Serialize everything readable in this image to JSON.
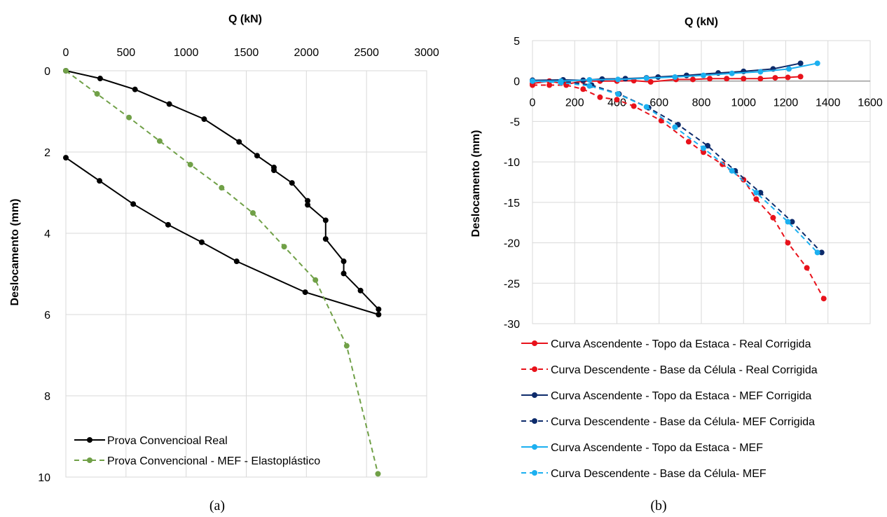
{
  "chart_data": [
    {
      "type": "line",
      "caption": "(a)",
      "xlabel": "Q (kN)",
      "ylabel": "Deslocamento (mm)",
      "xlim": [
        0,
        3000
      ],
      "ylim": [
        0,
        10
      ],
      "y_inverted": true,
      "x_axis_position": "top",
      "xticks": [
        "0",
        "500",
        "1000",
        "1500",
        "2000",
        "2500",
        "3000"
      ],
      "yticks": [
        "0",
        "2",
        "4",
        "6",
        "8",
        "10"
      ],
      "grid": true,
      "legend_position": "bottom-left",
      "series": [
        {
          "name": "Prova Convencioal Real",
          "color": "#000000",
          "dashed": false,
          "points": [
            [
              0,
              0
            ],
            [
              285,
              0.19
            ],
            [
              575,
              0.46
            ],
            [
              860,
              0.82
            ],
            [
              1150,
              1.19
            ],
            [
              1440,
              1.75
            ],
            [
              1590,
              2.09
            ],
            [
              1730,
              2.38
            ],
            [
              1730,
              2.45
            ],
            [
              1880,
              2.76
            ],
            [
              2010,
              3.2
            ],
            [
              2010,
              3.3
            ],
            [
              2160,
              3.68
            ],
            [
              2160,
              4.14
            ],
            [
              2310,
              4.69
            ],
            [
              2310,
              4.99
            ],
            [
              2450,
              5.41
            ],
            [
              2600,
              5.87
            ],
            [
              2600,
              6.0
            ],
            [
              1990,
              5.45
            ],
            [
              1420,
              4.69
            ],
            [
              1130,
              4.22
            ],
            [
              850,
              3.79
            ],
            [
              560,
              3.28
            ],
            [
              280,
              2.71
            ],
            [
              0,
              2.14
            ]
          ]
        },
        {
          "name": "Prova Convencional - MEF - Elastoplástico",
          "color": "#70A047",
          "dashed": true,
          "points": [
            [
              0,
              0
            ],
            [
              260,
              0.57
            ],
            [
              525,
              1.15
            ],
            [
              780,
              1.73
            ],
            [
              1035,
              2.31
            ],
            [
              1295,
              2.88
            ],
            [
              1555,
              3.5
            ],
            [
              1815,
              4.33
            ],
            [
              2075,
              5.15
            ],
            [
              2335,
              6.77
            ],
            [
              2595,
              9.92
            ]
          ]
        }
      ]
    },
    {
      "type": "line",
      "caption": "(b)",
      "xlabel": "Q (kN)",
      "ylabel": "Deslocamento (mm)",
      "xlim": [
        0,
        1600
      ],
      "ylim": [
        -30,
        5
      ],
      "xticks": [
        "0",
        "200",
        "400",
        "600",
        "800",
        "1000",
        "1200",
        "1400",
        "1600"
      ],
      "yticks": [
        "5",
        "0",
        "-5",
        "-10",
        "-15",
        "-20",
        "-25",
        "-30"
      ],
      "grid": true,
      "legend_position": "bottom",
      "series": [
        {
          "name": "Curva Ascendente - Topo da Estaca - Real Corrigida",
          "color": "#E8121B",
          "dashed": false,
          "points": [
            [
              0,
              -0.3
            ],
            [
              80,
              0.0
            ],
            [
              160,
              -0.4
            ],
            [
              240,
              0.0
            ],
            [
              320,
              0.0
            ],
            [
              400,
              0.0
            ],
            [
              480,
              0.05
            ],
            [
              560,
              -0.1
            ],
            [
              680,
              0.2
            ],
            [
              760,
              0.2
            ],
            [
              840,
              0.3
            ],
            [
              920,
              0.3
            ],
            [
              1000,
              0.3
            ],
            [
              1080,
              0.3
            ],
            [
              1150,
              0.4
            ],
            [
              1210,
              0.45
            ],
            [
              1270,
              0.55
            ]
          ]
        },
        {
          "name": "Curva Descendente - Base da Célula - Real Corrigida",
          "color": "#E8121B",
          "dashed": true,
          "points": [
            [
              0,
              -0.5
            ],
            [
              80,
              -0.5
            ],
            [
              160,
              -0.5
            ],
            [
              240,
              -1.0
            ],
            [
              320,
              -2.0
            ],
            [
              400,
              -2.3
            ],
            [
              480,
              -3.1
            ],
            [
              610,
              -4.9
            ],
            [
              740,
              -7.5
            ],
            [
              810,
              -8.8
            ],
            [
              900,
              -10.3
            ],
            [
              1000,
              -12.2
            ],
            [
              1060,
              -14.6
            ],
            [
              1140,
              -16.9
            ],
            [
              1210,
              -20.0
            ],
            [
              1300,
              -23.1
            ],
            [
              1380,
              -26.9
            ]
          ]
        },
        {
          "name": "Curva  Ascendente - Topo da Estaca - MEF Corrigida",
          "color": "#0D2B6B",
          "dashed": false,
          "points": [
            [
              0,
              0.1
            ],
            [
              145,
              0.15
            ],
            [
              240,
              0.1
            ],
            [
              330,
              0.25
            ],
            [
              440,
              0.3
            ],
            [
              540,
              0.4
            ],
            [
              595,
              0.5
            ],
            [
              730,
              0.7
            ],
            [
              880,
              1.0
            ],
            [
              1000,
              1.2
            ],
            [
              1140,
              1.5
            ],
            [
              1270,
              2.2
            ]
          ]
        },
        {
          "name": "Curva  Descendente - Base da Célula- MEF Corrigida",
          "color": "#0D2B6B",
          "dashed": true,
          "points": [
            [
              0,
              0.0
            ],
            [
              140,
              0.0
            ],
            [
              280,
              -0.5
            ],
            [
              410,
              -1.6
            ],
            [
              550,
              -3.3
            ],
            [
              690,
              -5.4
            ],
            [
              830,
              -8.0
            ],
            [
              960,
              -11.1
            ],
            [
              1080,
              -13.8
            ],
            [
              1230,
              -17.4
            ],
            [
              1370,
              -21.2
            ]
          ]
        },
        {
          "name": "Curva  Ascendente - Topo da Estaca - MEF",
          "color": "#1CB0F0",
          "dashed": false,
          "points": [
            [
              0,
              0.0
            ],
            [
              135,
              0.0
            ],
            [
              270,
              0.15
            ],
            [
              405,
              0.2
            ],
            [
              540,
              0.35
            ],
            [
              675,
              0.5
            ],
            [
              810,
              0.7
            ],
            [
              945,
              0.95
            ],
            [
              1080,
              1.15
            ],
            [
              1215,
              1.5
            ],
            [
              1350,
              2.2
            ]
          ]
        },
        {
          "name": "Curva  Descendente - Base da Célula- MEF",
          "color": "#1CB0F0",
          "dashed": true,
          "points": [
            [
              0,
              0.0
            ],
            [
              135,
              -0.2
            ],
            [
              270,
              -0.6
            ],
            [
              405,
              -1.6
            ],
            [
              540,
              -3.2
            ],
            [
              675,
              -5.7
            ],
            [
              810,
              -8.3
            ],
            [
              945,
              -11.1
            ],
            [
              1060,
              -13.8
            ],
            [
              1210,
              -17.4
            ],
            [
              1350,
              -21.2
            ]
          ]
        }
      ]
    }
  ]
}
